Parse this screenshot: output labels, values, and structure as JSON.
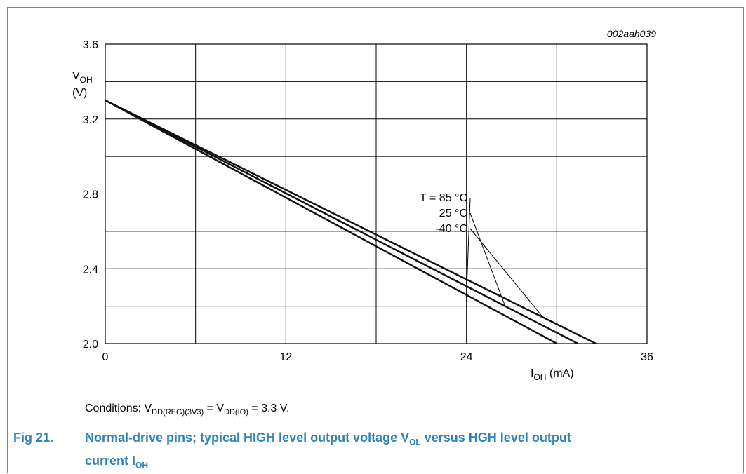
{
  "figure": {
    "code": "002aah039",
    "conditions_prefix": "Conditions: V",
    "conditions_sub1": "DD(REG)(3V3)",
    "conditions_mid": " = V",
    "conditions_sub2": "DD(IO)",
    "conditions_suffix": " = 3.3 V.",
    "caption_number": "Fig 21.",
    "caption_part1": "Normal-drive pins; typical HIGH level output voltage V",
    "caption_sub1": "OL",
    "caption_part2": " versus HGH level output",
    "caption_line2": "current I",
    "caption_sub2": "OH"
  },
  "chart_data": {
    "type": "line",
    "xlabel_main": "I",
    "xlabel_sub": "OH",
    "xlabel_unit": " (mA)",
    "ylabel_main": "V",
    "ylabel_sub": "OH",
    "ylabel_unit": "(V)",
    "xlim": [
      0,
      36
    ],
    "ylim": [
      2.0,
      3.6
    ],
    "xticks": [
      0,
      12,
      24,
      36
    ],
    "yticks": [
      2.0,
      2.4,
      2.8,
      3.2,
      3.6
    ],
    "xtick_labels": [
      "0",
      "12",
      "24",
      "36"
    ],
    "ytick_labels": [
      "2.0",
      "2.4",
      "2.8",
      "3.2",
      "3.6"
    ],
    "grid": true,
    "series": [
      {
        "name": "T = 85 °C",
        "x": [
          0,
          30.0
        ],
        "y": [
          3.3,
          2.0
        ]
      },
      {
        "name": "25 °C",
        "x": [
          0,
          31.4
        ],
        "y": [
          3.3,
          2.0
        ]
      },
      {
        "name": "-40 °C",
        "x": [
          0,
          32.6
        ],
        "y": [
          3.3,
          2.0
        ]
      }
    ],
    "annotation_labels": [
      "T = 85 °C",
      "25 °C",
      "-40 °C"
    ]
  }
}
